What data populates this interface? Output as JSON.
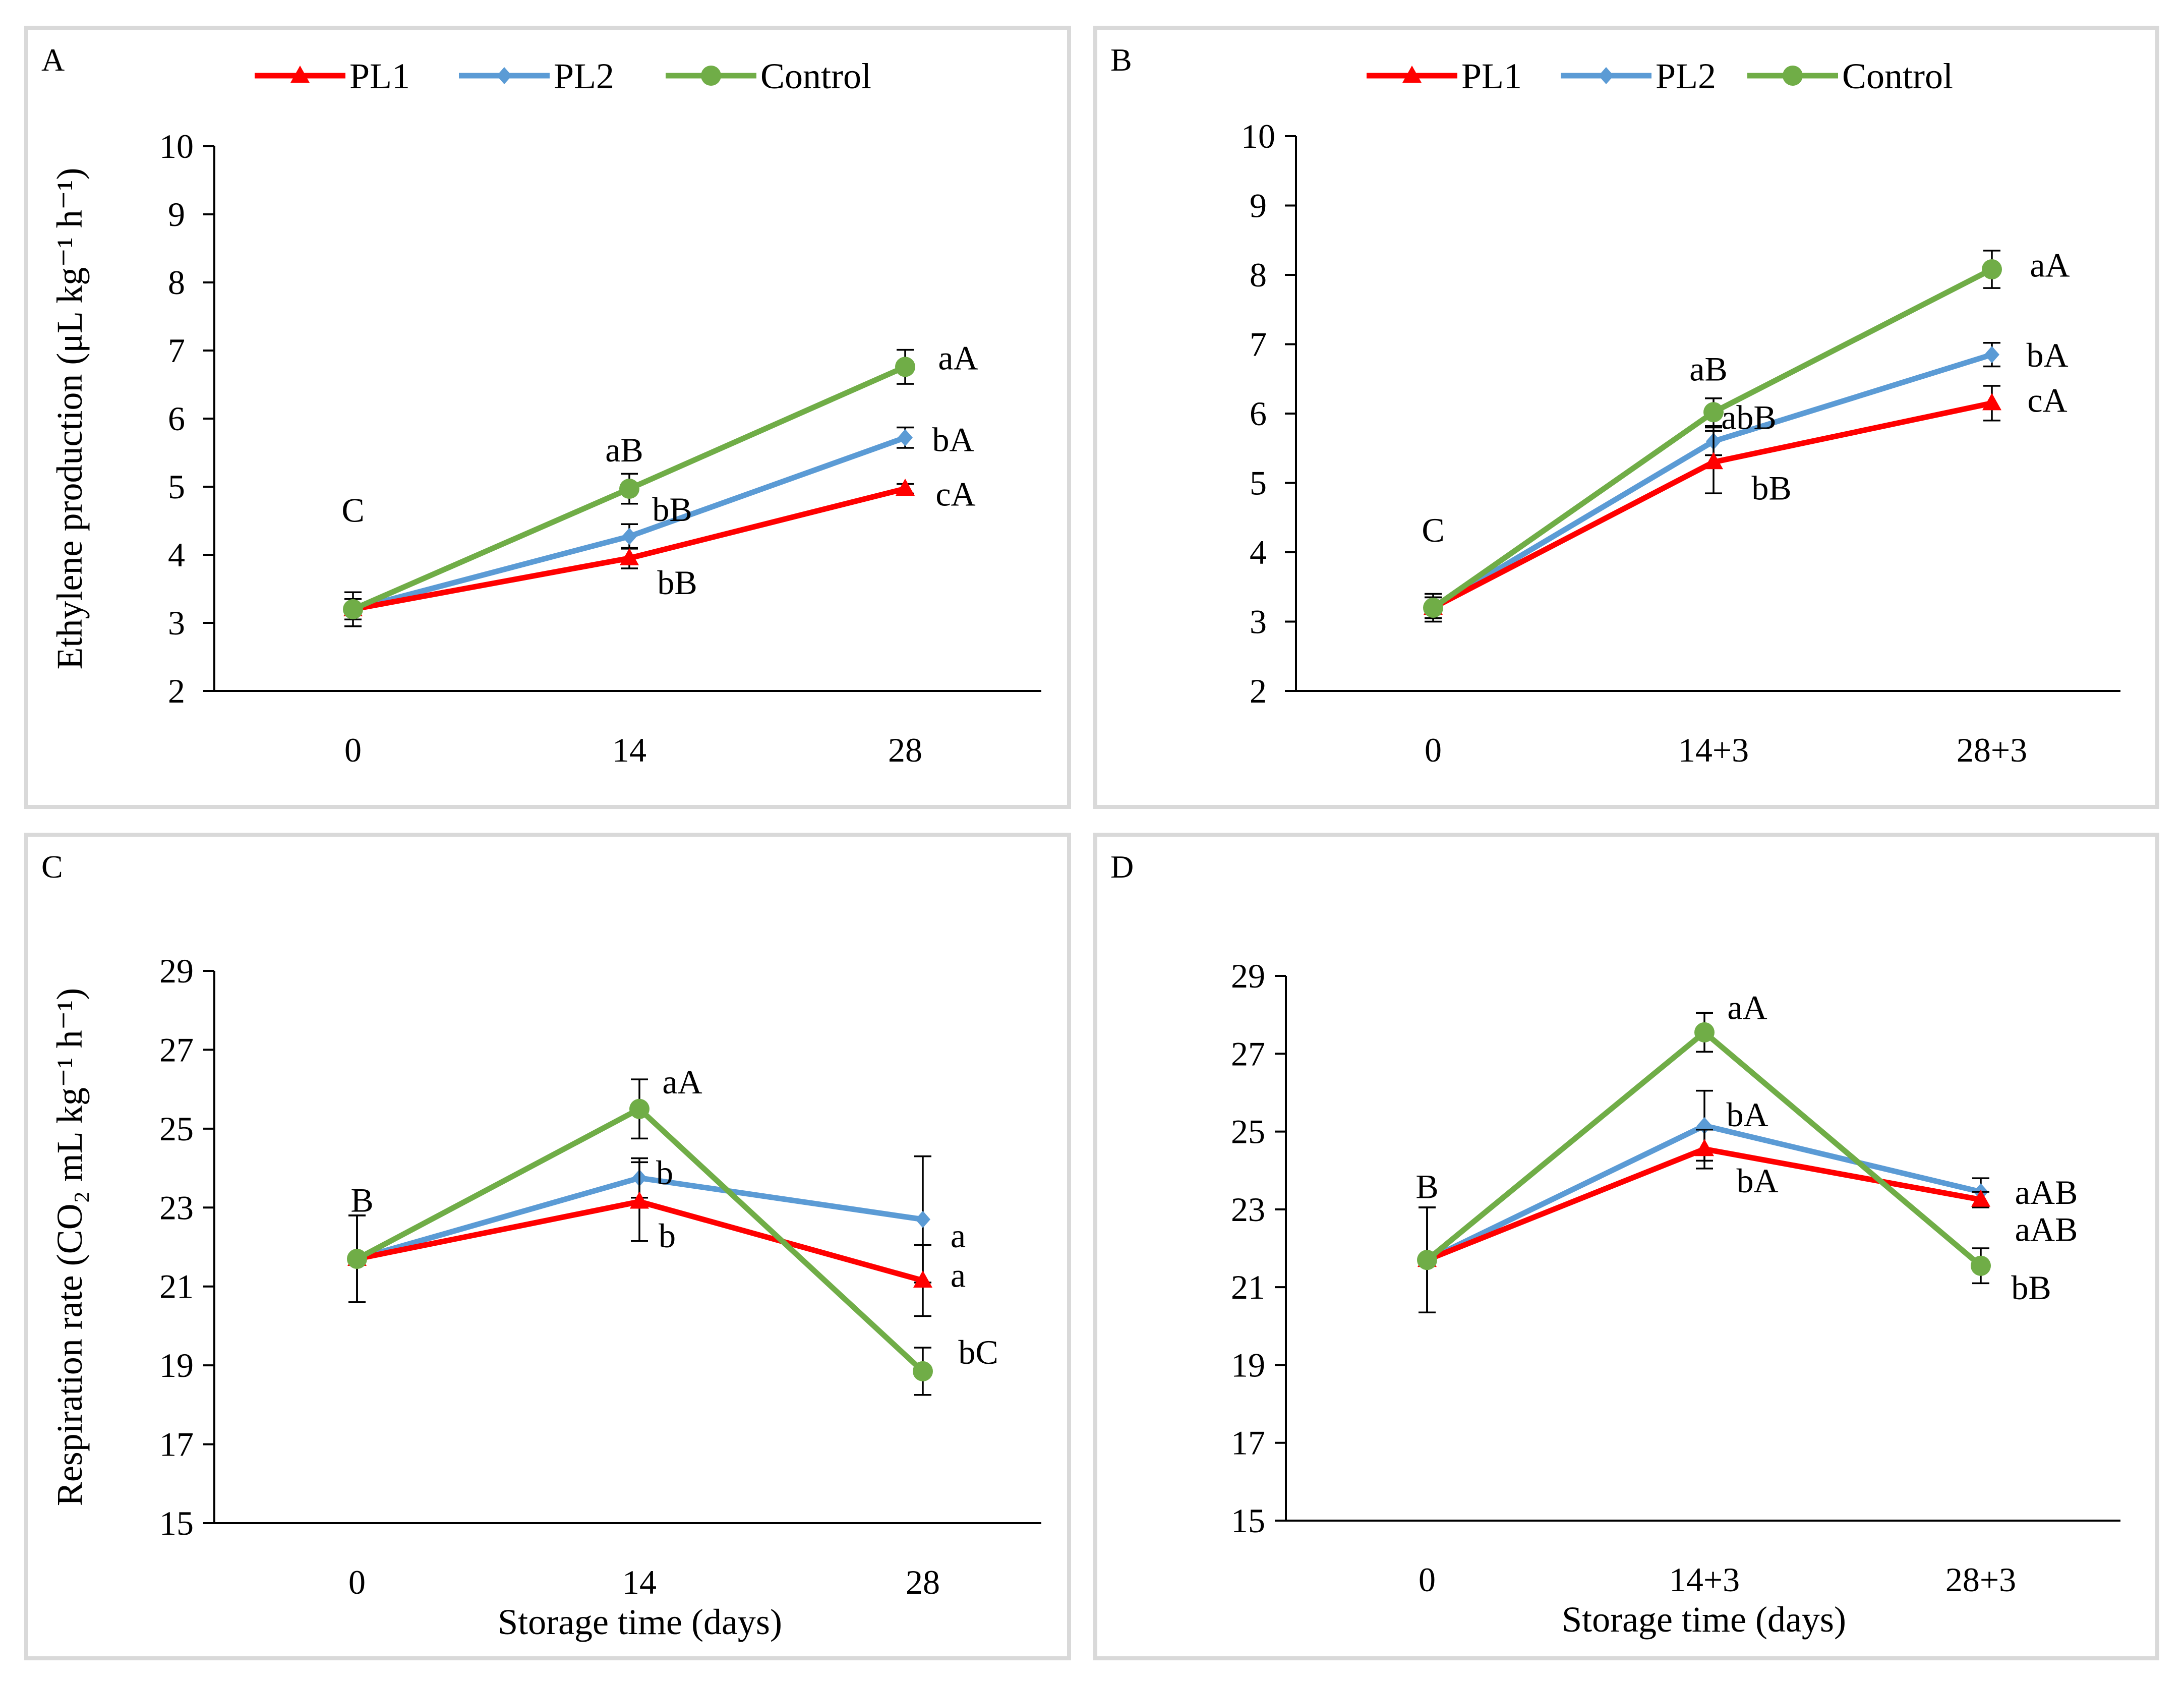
{
  "colors": {
    "PL1": "#ff0000",
    "PL2": "#5b9bd5",
    "Control": "#70ad47"
  },
  "legend": [
    {
      "name": "PL1",
      "marker": "triangle-icon"
    },
    {
      "name": "PL2",
      "marker": "diamond-icon"
    },
    {
      "name": "Control",
      "marker": "circle-icon"
    }
  ],
  "chart_data": [
    {
      "panel": "A",
      "type": "line",
      "categories": [
        "0",
        "14",
        "28"
      ],
      "ylabel": "Ethylene production (μL kg⁻¹ h⁻¹)",
      "xlabel": "",
      "ylim": [
        2,
        10
      ],
      "yticks": [
        2,
        3,
        4,
        5,
        6,
        7,
        8,
        9,
        10
      ],
      "legend_position": "top",
      "series": [
        {
          "name": "PL1",
          "values": [
            3.2,
            3.95,
            4.97
          ],
          "errors": [
            0.15,
            0.15,
            0.07
          ]
        },
        {
          "name": "PL2",
          "values": [
            3.2,
            4.27,
            5.72
          ],
          "errors": [
            0.15,
            0.18,
            0.15
          ]
        },
        {
          "name": "Control",
          "values": [
            3.2,
            4.97,
            6.76
          ],
          "errors": [
            0.25,
            0.22,
            0.25
          ]
        }
      ],
      "annotations": [
        {
          "text": "C",
          "x": "0",
          "y": 3.85
        },
        {
          "text": "aB",
          "x": "14",
          "y": 5.55
        },
        {
          "text": "bB",
          "x": "14",
          "y": 4.75
        },
        {
          "text": "bB",
          "x": "14",
          "y": 3.75
        },
        {
          "text": "aA",
          "x": "28",
          "y": 6.9
        },
        {
          "text": "bA",
          "x": "28",
          "y": 5.7
        },
        {
          "text": "cA",
          "x": "28",
          "y": 4.9
        }
      ]
    },
    {
      "panel": "B",
      "type": "line",
      "categories": [
        "0",
        "14+3",
        "28+3"
      ],
      "ylabel": "",
      "xlabel": "",
      "ylim": [
        2,
        10
      ],
      "yticks": [
        2,
        3,
        4,
        5,
        6,
        7,
        8,
        9,
        10
      ],
      "legend_position": "top",
      "series": [
        {
          "name": "PL1",
          "values": [
            3.2,
            5.3,
            6.15
          ],
          "errors": [
            0.15,
            0.45,
            0.25
          ]
        },
        {
          "name": "PL2",
          "values": [
            3.2,
            5.6,
            6.85
          ],
          "errors": [
            0.15,
            0.2,
            0.17
          ]
        },
        {
          "name": "Control",
          "values": [
            3.2,
            6.02,
            8.08
          ],
          "errors": [
            0.2,
            0.2,
            0.27
          ]
        }
      ],
      "annotations": [
        {
          "text": "C",
          "x": "0",
          "y": 3.6
        },
        {
          "text": "aB",
          "x": "14+3",
          "y": 6.65
        },
        {
          "text": "abB",
          "x": "14+3",
          "y": 6.1
        },
        {
          "text": "bB",
          "x": "14+3",
          "y": 4.9
        },
        {
          "text": "aA",
          "x": "28+3",
          "y": 8.15
        },
        {
          "text": "bA",
          "x": "28+3",
          "y": 6.85
        },
        {
          "text": "cA",
          "x": "28+3",
          "y": 6.2
        }
      ]
    },
    {
      "panel": "C",
      "type": "line",
      "categories": [
        "0",
        "14",
        "28"
      ],
      "ylabel": "Respiration rate (CO₂ mL kg⁻¹ h⁻¹)",
      "xlabel": "Storage time (days)",
      "ylim": [
        15,
        29
      ],
      "yticks": [
        15,
        17,
        19,
        21,
        23,
        25,
        27,
        29
      ],
      "legend_position": "none",
      "series": [
        {
          "name": "PL1",
          "values": [
            21.7,
            23.15,
            21.15
          ],
          "errors": [
            1.1,
            1.0,
            0.9
          ]
        },
        {
          "name": "PL2",
          "values": [
            21.7,
            23.75,
            22.7
          ],
          "errors": [
            1.1,
            0.5,
            1.6
          ]
        },
        {
          "name": "Control",
          "values": [
            21.7,
            25.5,
            18.85
          ],
          "errors": [
            1.1,
            0.75,
            0.6
          ]
        }
      ],
      "annotations": [
        {
          "text": "B",
          "x": "0",
          "y": 23.2
        },
        {
          "text": "aA",
          "x": "14",
          "y": 26.2
        },
        {
          "text": "b",
          "x": "14",
          "y": 23.9
        },
        {
          "text": "b",
          "x": "14",
          "y": 22.3
        },
        {
          "text": "a",
          "x": "28",
          "y": 22.3
        },
        {
          "text": "a",
          "x": "28",
          "y": 21.3
        },
        {
          "text": "bC",
          "x": "28",
          "y": 19.35
        }
      ]
    },
    {
      "panel": "D",
      "type": "line",
      "categories": [
        "0",
        "14+3",
        "28+3"
      ],
      "ylabel": "",
      "xlabel": "Storage time (days)",
      "ylim": [
        15,
        29
      ],
      "yticks": [
        15,
        17,
        19,
        21,
        23,
        25,
        27,
        29
      ],
      "legend_position": "none",
      "series": [
        {
          "name": "PL1",
          "values": [
            21.7,
            24.55,
            23.25
          ],
          "errors": [
            1.35,
            0.5,
            0.2
          ]
        },
        {
          "name": "PL2",
          "values": [
            21.7,
            25.15,
            23.45
          ],
          "errors": [
            1.35,
            0.9,
            0.35
          ]
        },
        {
          "name": "Control",
          "values": [
            21.7,
            27.55,
            21.55
          ],
          "errors": [
            1.35,
            0.5,
            0.45
          ]
        }
      ],
      "annotations": [
        {
          "text": "B",
          "x": "0",
          "y": 23.6
        },
        {
          "text": "aA",
          "x": "14+3",
          "y": 28.2
        },
        {
          "text": "bA",
          "x": "14+3",
          "y": 25.45
        },
        {
          "text": "bA",
          "x": "14+3",
          "y": 23.75
        },
        {
          "text": "aAB",
          "x": "28+3",
          "y": 23.45
        },
        {
          "text": "aAB",
          "x": "28+3",
          "y": 22.5
        },
        {
          "text": "bB",
          "x": "28+3",
          "y": 21.0
        }
      ]
    }
  ]
}
